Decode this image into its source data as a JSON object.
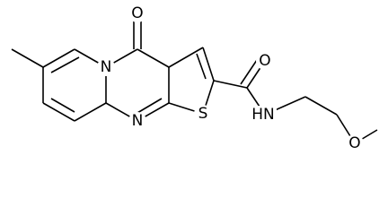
{
  "atoms": [
    {
      "label": "O"
    },
    {
      "label": "N"
    },
    {
      "label": "N"
    },
    {
      "label": "S"
    },
    {
      "label": "O"
    },
    {
      "label": "HN"
    },
    {
      "label": "O"
    }
  ]
}
